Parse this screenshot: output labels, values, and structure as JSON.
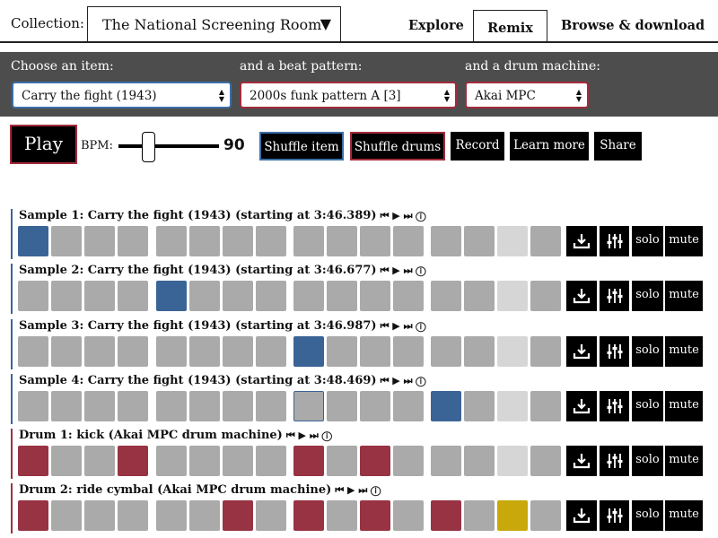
{
  "header": {
    "collection_label": "Collection:",
    "collection_value": "The National Screening Room",
    "tabs": [
      {
        "label": "Explore",
        "active": false
      },
      {
        "label": "Remix",
        "active": true
      },
      {
        "label": "Browse & download",
        "active": false
      }
    ]
  },
  "chooser": {
    "item_label": "Choose an item:",
    "item_value": "Carry the fight (1943)",
    "beat_label": "and a beat pattern:",
    "beat_value": "2000s funk pattern A [3]",
    "drum_label": "and a drum machine:",
    "drum_value": "Akai MPC"
  },
  "controls": {
    "play_label": "Play",
    "bpm_label": "BPM:",
    "bpm_value": "90",
    "bpm_level": 90,
    "buttons": [
      "Shuffle item",
      "Shuffle drums",
      "Record",
      "Learn more",
      "Share"
    ]
  },
  "rows": [
    {
      "label": "Sample 1: Carry the fight (1943) (starting at 3:46.389)",
      "kind": "sample",
      "cells": [
        "blue",
        "off",
        "off",
        "off",
        "off",
        "off",
        "off",
        "off",
        "off",
        "off",
        "off",
        "off",
        "off",
        "off",
        "light",
        "off"
      ]
    },
    {
      "label": "Sample 2: Carry the fight (1943) (starting at 3:46.677)",
      "kind": "sample",
      "cells": [
        "off",
        "off",
        "off",
        "off",
        "blue",
        "off",
        "off",
        "off",
        "off",
        "off",
        "off",
        "off",
        "off",
        "off",
        "light",
        "off"
      ]
    },
    {
      "label": "Sample 3: Carry the fight (1943) (starting at 3:46.987)",
      "kind": "sample",
      "cells": [
        "off",
        "off",
        "off",
        "off",
        "off",
        "off",
        "off",
        "off",
        "blue",
        "off",
        "off",
        "off",
        "off",
        "off",
        "light",
        "off"
      ]
    },
    {
      "label": "Sample 4: Carry the fight (1943) (starting at 3:48.469)",
      "kind": "sample",
      "cells": [
        "off",
        "off",
        "off",
        "off",
        "off",
        "off",
        "off",
        "off",
        "outlined",
        "off",
        "off",
        "off",
        "blue",
        "off",
        "light",
        "off"
      ]
    },
    {
      "label": "Drum 1: kick (Akai MPC drum machine)",
      "kind": "drum",
      "cells": [
        "red",
        "off",
        "off",
        "red",
        "off",
        "off",
        "off",
        "off",
        "red",
        "off",
        "red",
        "off",
        "off",
        "off",
        "light",
        "off"
      ]
    },
    {
      "label": "Drum 2: ride cymbal (Akai MPC drum machine)",
      "kind": "drum",
      "cells": [
        "red",
        "off",
        "off",
        "off",
        "off",
        "off",
        "red",
        "off",
        "red",
        "off",
        "red",
        "off",
        "red",
        "off",
        "gold",
        "off"
      ]
    }
  ],
  "row_controls_glyph": "⏮ ▶ ⏭ ⓘ",
  "row_actions": {
    "solo": "solo",
    "mute": "mute"
  },
  "colors": {
    "sample_accent": "#3b6496",
    "drum_accent": "#983343",
    "highlight": "#c9a80c",
    "bar": "#4d4d4d"
  }
}
